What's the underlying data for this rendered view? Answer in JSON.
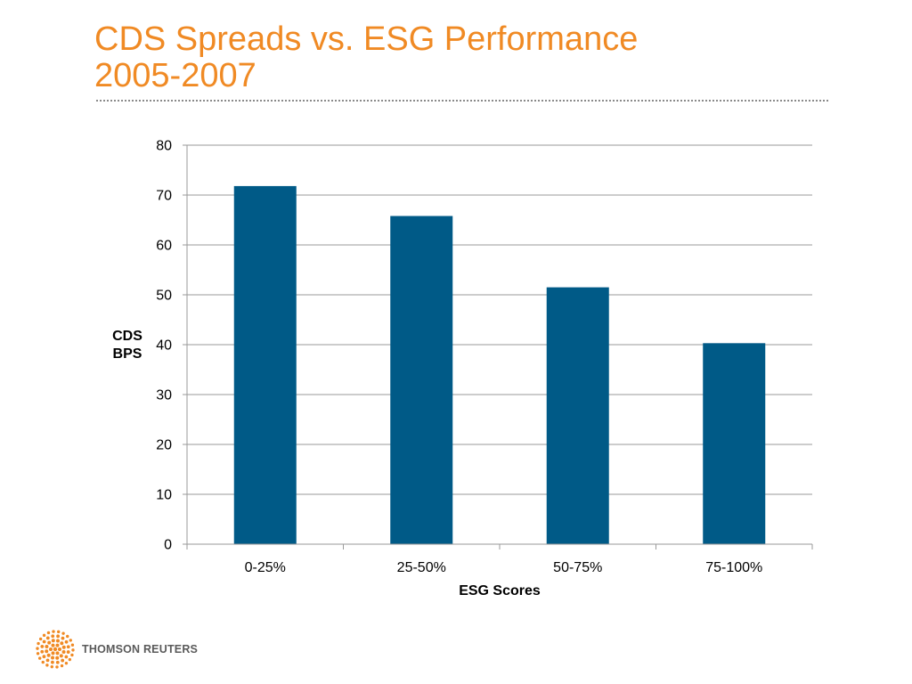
{
  "slide": {
    "title_line1": "CDS Spreads vs. ESG Performance",
    "title_line2": "2005-2007"
  },
  "logo": {
    "text": "THOMSON REUTERS",
    "color": "#F08A24"
  },
  "colors": {
    "title": "#F08A24",
    "bar": "#005A87",
    "grid": "#9a9a9a",
    "rule": "#8a8a8a"
  },
  "chart_data": {
    "type": "bar",
    "title": "",
    "categories": [
      "0-25%",
      "25-50%",
      "50-75%",
      "75-100%"
    ],
    "values": [
      71.8,
      65.8,
      51.5,
      40.3
    ],
    "xlabel": "ESG Scores",
    "ylabel_lines": [
      "CDS",
      "BPS"
    ],
    "ylim": [
      0,
      80
    ],
    "yticks": [
      0,
      10,
      20,
      30,
      40,
      50,
      60,
      70,
      80
    ],
    "grid": true,
    "legend": "none"
  }
}
